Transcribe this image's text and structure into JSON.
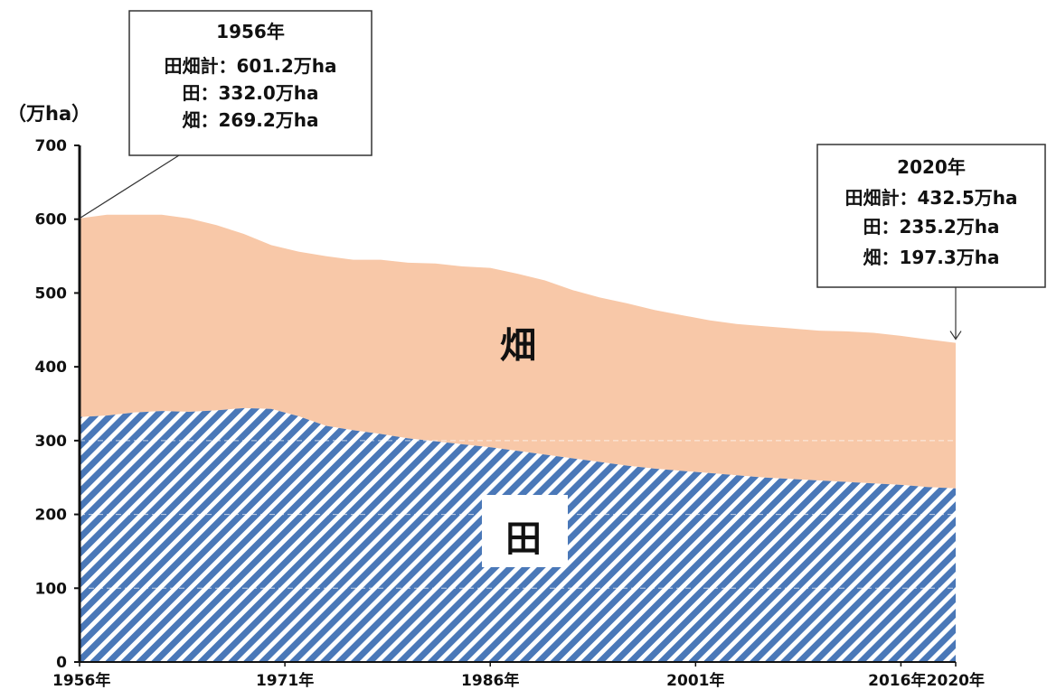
{
  "chart_data": {
    "type": "area",
    "stacked": true,
    "unit_label": "（万ha）",
    "yticks": [
      0,
      100,
      200,
      300,
      400,
      500,
      600,
      700
    ],
    "ylim": [
      0,
      700
    ],
    "xlim": [
      1956,
      2020
    ],
    "xticks": [
      "1956年",
      "1971年",
      "1986年",
      "2001年",
      "2016年",
      "2020年"
    ],
    "xtick_years": [
      1956,
      1971,
      1986,
      2001,
      2016,
      2020
    ],
    "x": [
      1956,
      1958,
      1960,
      1962,
      1964,
      1966,
      1968,
      1970,
      1972,
      1974,
      1976,
      1978,
      1980,
      1982,
      1984,
      1986,
      1988,
      1990,
      1992,
      1994,
      1996,
      1998,
      2000,
      2002,
      2004,
      2006,
      2008,
      2010,
      2012,
      2014,
      2016,
      2018,
      2020
    ],
    "series": [
      {
        "name": "田",
        "label": "田",
        "color": "#4a78b8",
        "pattern": "diagonal-stripes",
        "values": [
          332.0,
          334,
          338,
          340,
          339,
          341,
          344,
          343,
          333,
          320,
          314,
          309,
          303,
          299,
          295,
          291,
          286,
          281,
          276,
          271,
          266,
          262,
          259,
          256,
          253,
          250,
          248,
          246,
          244,
          242,
          240,
          237,
          235.2
        ]
      },
      {
        "name": "畑",
        "label": "畑",
        "color": "#f8c8a8",
        "values": [
          269.2,
          272,
          268,
          266,
          262,
          251,
          236,
          222,
          223,
          230,
          231,
          236,
          238,
          241,
          241,
          243,
          240,
          236,
          228,
          223,
          220,
          215,
          211,
          207,
          205,
          205,
          204,
          203,
          204,
          204,
          202,
          200,
          197.3
        ]
      }
    ],
    "annotations": [
      {
        "year": 1956,
        "title": "1956年",
        "lines": [
          "田畑計：601.2万ha",
          "田：332.0万ha",
          "畑：269.2万ha"
        ]
      },
      {
        "year": 2020,
        "title": "2020年",
        "lines": [
          "田畑計：432.5万ha",
          "田：235.2万ha",
          "畑：197.3万ha"
        ]
      }
    ],
    "grid": false,
    "legend": "none"
  }
}
